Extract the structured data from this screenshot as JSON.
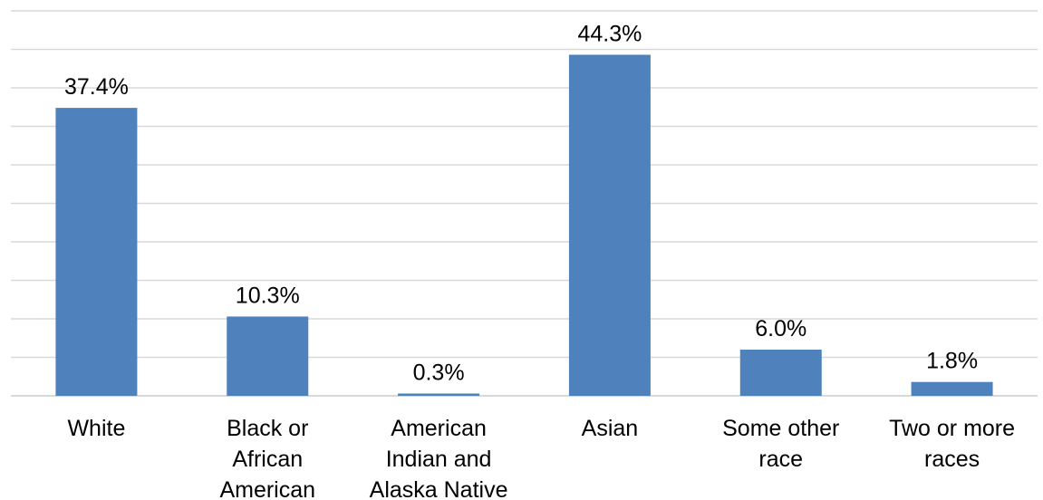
{
  "chart_data": {
    "type": "bar",
    "categories": [
      [
        "White"
      ],
      [
        "Black or",
        "African",
        "American"
      ],
      [
        "American",
        "Indian and",
        "Alaska Native"
      ],
      [
        "Asian"
      ],
      [
        "Some other",
        "race"
      ],
      [
        "Two or more",
        "races"
      ]
    ],
    "values": [
      37.4,
      10.3,
      0.3,
      44.3,
      6.0,
      1.8
    ],
    "value_labels": [
      "37.4%",
      "10.3%",
      "0.3%",
      "44.3%",
      "6.0%",
      "1.8%"
    ],
    "title": "",
    "xlabel": "",
    "ylabel": "",
    "ylim": [
      0,
      50
    ],
    "grid": true,
    "legend": "none",
    "bar_color": "#4f81bd",
    "grid_color": "#d9d9d9"
  }
}
